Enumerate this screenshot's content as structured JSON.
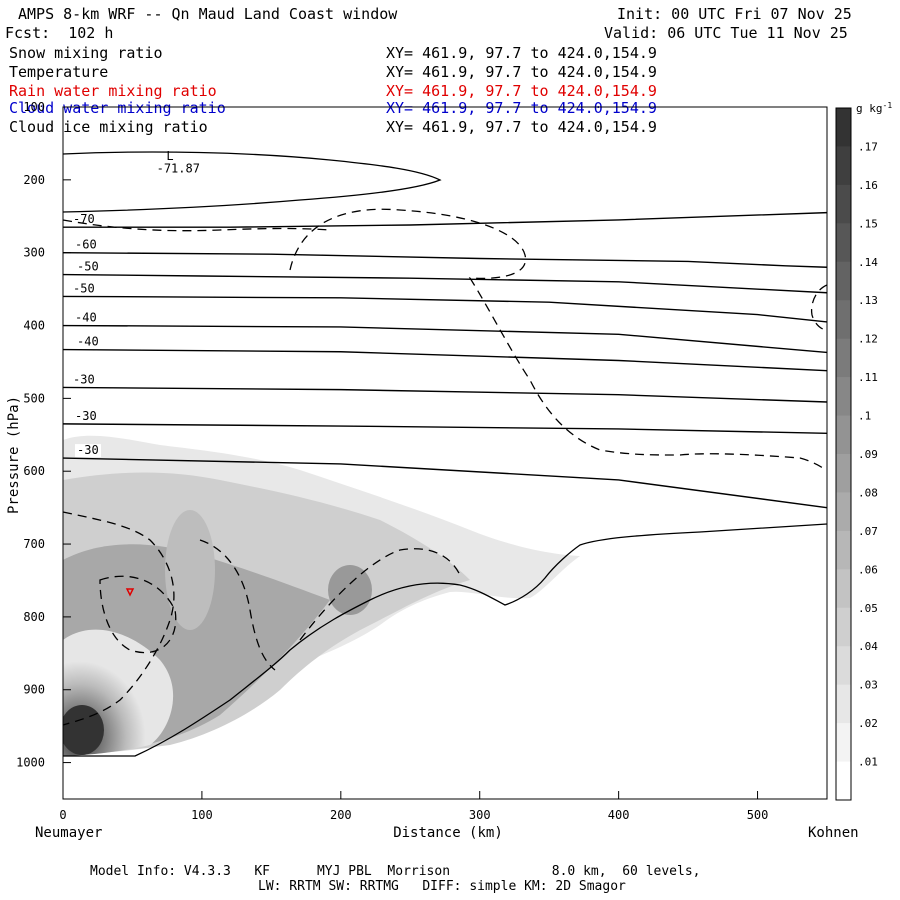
{
  "header": {
    "title": "AMPS 8-km WRF -- Qn Maud Land Coast window",
    "fcst": "Fcst:  102 h",
    "init": "Init: 00 UTC Fri 07 Nov 25",
    "valid": "Valid: 06 UTC Tue 11 Nov 25"
  },
  "fields": [
    {
      "name": "Snow mixing ratio",
      "xy": "XY= 461.9, 97.7 to 424.0,154.9",
      "color": "#000000"
    },
    {
      "name": "Temperature",
      "xy": "XY= 461.9, 97.7 to 424.0,154.9",
      "color": "#000000"
    },
    {
      "name": "Rain water mixing ratio",
      "xy": "XY= 461.9, 97.7 to 424.0,154.9",
      "color": "#e00000"
    },
    {
      "name": "Cloud water mixing ratio",
      "xy": "XY= 461.9, 97.7 to 424.0,154.9",
      "color": "#0000cc"
    },
    {
      "name": "Cloud ice mixing ratio",
      "xy": "XY= 461.9, 97.7 to 424.0,154.9",
      "color": "#000000"
    }
  ],
  "chart_data": {
    "type": "heatmap",
    "xlabel": "Distance (km)",
    "ylabel": "Pressure (hPa)",
    "xlim": [
      0,
      550
    ],
    "ylim": [
      1050,
      100
    ],
    "x_ticks": [
      "0",
      "100",
      "200",
      "300",
      "400",
      "500"
    ],
    "y_ticks": [
      "100",
      "200",
      "300",
      "400",
      "500",
      "600",
      "700",
      "800",
      "900",
      "1000"
    ],
    "x_end_labels": {
      "left": "Neumayer",
      "right": "Kohnen"
    },
    "colorbar": {
      "unit": "g kg",
      "unit_sup": "-1",
      "levels": [
        ".01",
        ".02",
        ".03",
        ".04",
        ".05",
        ".06",
        ".07",
        ".08",
        ".09",
        ".1",
        ".11",
        ".12",
        ".13",
        ".14",
        ".15",
        ".16",
        ".17"
      ],
      "min_color": "#ffffff",
      "max_color": "#333333"
    },
    "temperature_contours": [
      {
        "label": "-70",
        "points": [
          [
            0,
            265
          ],
          [
            120,
            265
          ],
          [
            250,
            262
          ],
          [
            400,
            255
          ],
          [
            550,
            245
          ]
        ]
      },
      {
        "label": "-60",
        "points": [
          [
            0,
            300
          ],
          [
            150,
            302
          ],
          [
            300,
            308
          ],
          [
            450,
            312
          ],
          [
            520,
            318
          ],
          [
            550,
            320
          ]
        ]
      },
      {
        "label": "-50",
        "points": [
          [
            0,
            330
          ],
          [
            100,
            332
          ],
          [
            250,
            335
          ],
          [
            400,
            340
          ],
          [
            550,
            355
          ]
        ]
      },
      {
        "label": "-50",
        "points": [
          [
            0,
            360
          ],
          [
            200,
            362
          ],
          [
            350,
            368
          ],
          [
            500,
            385
          ],
          [
            550,
            395
          ]
        ]
      },
      {
        "label": "-40",
        "points": [
          [
            0,
            400
          ],
          [
            200,
            402
          ],
          [
            400,
            412
          ],
          [
            550,
            437
          ]
        ]
      },
      {
        "label": "-40",
        "points": [
          [
            0,
            433
          ],
          [
            200,
            436
          ],
          [
            400,
            448
          ],
          [
            550,
            462
          ]
        ]
      },
      {
        "label": "-30",
        "points": [
          [
            0,
            485
          ],
          [
            200,
            488
          ],
          [
            400,
            495
          ],
          [
            550,
            505
          ]
        ]
      },
      {
        "label": "-30",
        "points": [
          [
            0,
            535
          ],
          [
            200,
            538
          ],
          [
            400,
            542
          ],
          [
            550,
            548
          ]
        ]
      },
      {
        "label": "-30",
        "points": [
          [
            0,
            582
          ],
          [
            200,
            590
          ],
          [
            400,
            612
          ],
          [
            550,
            650
          ]
        ]
      }
    ],
    "annotations": [
      {
        "text": "L",
        "x": 77,
        "y": 173
      },
      {
        "text": "-71.87",
        "x": 83,
        "y": 190
      }
    ]
  },
  "footer": {
    "line1": "Model Info: V4.3.3   KF      MYJ PBL  Morrison             8.0 km,  60 levels,",
    "line2": "LW: RRTM SW: RRTMG   DIFF: simple KM: 2D Smagor"
  }
}
